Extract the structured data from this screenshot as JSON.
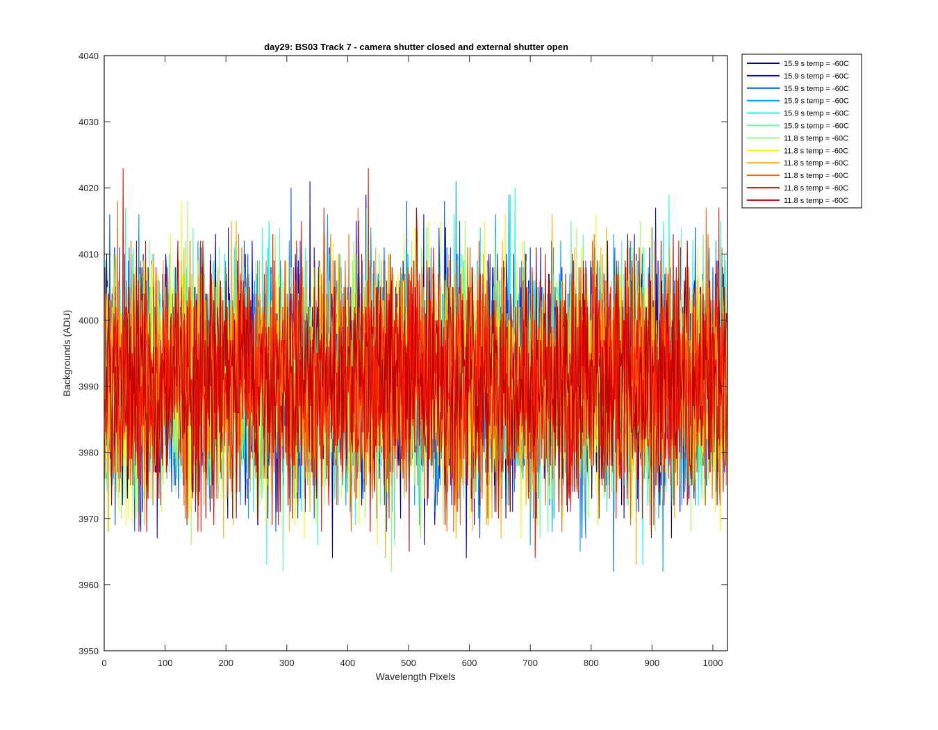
{
  "chart_data": {
    "type": "line",
    "title": "day29: BS03  Track 7 - camera shutter closed and external shutter open",
    "xlabel": "Wavelength Pixels",
    "ylabel": "Backgrounds (ADU)",
    "xlim": [
      0,
      1024
    ],
    "ylim": [
      3950,
      4040
    ],
    "xticks": [
      0,
      100,
      200,
      300,
      400,
      500,
      600,
      700,
      800,
      900,
      1000
    ],
    "yticks": [
      3950,
      3960,
      3970,
      3980,
      3990,
      4000,
      4010,
      4020,
      4030,
      4040
    ],
    "grid": false,
    "legend_position": "outside-top-right",
    "noise_profile": {
      "mean": 3991,
      "typical_range": [
        3962,
        4030
      ],
      "points_per_series": 1024
    },
    "series": [
      {
        "name": "15.9 s temp = -60C",
        "color": "#00008f"
      },
      {
        "name": "15.9 s temp = -60C",
        "color": "#0000ff"
      },
      {
        "name": "15.9 s temp = -60C",
        "color": "#0050ff"
      },
      {
        "name": "15.9 s temp = -60C",
        "color": "#009fff"
      },
      {
        "name": "15.9 s temp = -60C",
        "color": "#10ffef"
      },
      {
        "name": "15.9 s temp = -60C",
        "color": "#60ff9f"
      },
      {
        "name": "11.8 s temp = -60C",
        "color": "#9fff60"
      },
      {
        "name": "11.8 s temp = -60C",
        "color": "#efff10"
      },
      {
        "name": "11.8 s temp = -60C",
        "color": "#ffaf00"
      },
      {
        "name": "11.8 s temp = -60C",
        "color": "#ff6000"
      },
      {
        "name": "11.8 s temp = -60C",
        "color": "#ff1000"
      },
      {
        "name": "11.8 s temp = -60C",
        "color": "#bf0000"
      }
    ]
  }
}
